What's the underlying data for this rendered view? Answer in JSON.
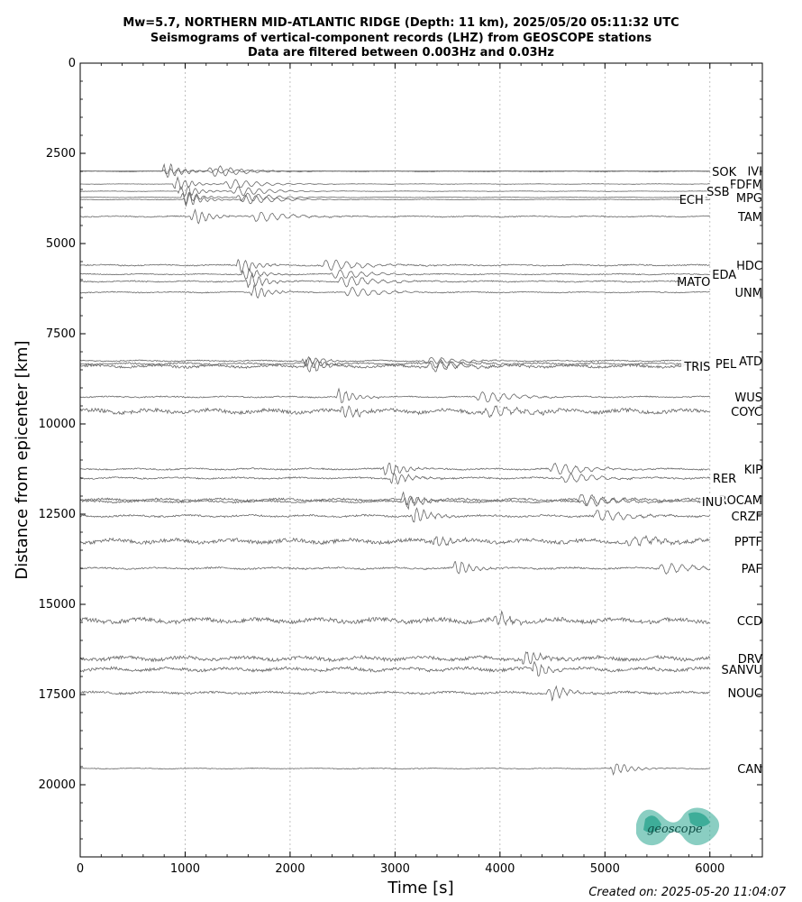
{
  "titles": {
    "line1": "Mw=5.7, NORTHERN MID-ATLANTIC RIDGE (Depth: 11 km), 2025/05/20 05:11:32 UTC",
    "line2": "Seismograms of vertical-component records (LHZ) from GEOSCOPE stations",
    "line3": "Data are filtered between 0.003Hz and 0.03Hz"
  },
  "footer": {
    "created": "Created on: 2025-05-20 11:04:07"
  },
  "logo": {
    "text": "geoscope",
    "color": "#2aa58f"
  },
  "chart_data": {
    "type": "line",
    "xlabel": "Time [s]",
    "ylabel": "Distance from epicenter [km]",
    "xlim": [
      0,
      6500
    ],
    "ylim": [
      22000,
      0
    ],
    "xticks": [
      0,
      1000,
      2000,
      3000,
      4000,
      5000,
      6000
    ],
    "yticks": [
      0,
      2500,
      5000,
      7500,
      10000,
      12500,
      15000,
      17500,
      20000
    ],
    "grid": "vertical-dotted",
    "trace_color": "#666666",
    "stations": [
      {
        "name": "SOK",
        "distance": 3000,
        "arrival": 780,
        "amp": 1.0,
        "noise": 0.02
      },
      {
        "name": "IVI",
        "distance": 2990,
        "arrival": 790,
        "amp": 0.4,
        "noise": 0.02
      },
      {
        "name": "FDFM",
        "distance": 3350,
        "arrival": 880,
        "amp": 0.8,
        "noise": 0.02
      },
      {
        "name": "SSB",
        "distance": 3550,
        "arrival": 930,
        "amp": 0.8,
        "noise": 0.02
      },
      {
        "name": "MPG",
        "distance": 3720,
        "arrival": 960,
        "amp": 0.8,
        "noise": 0.02
      },
      {
        "name": "ECH",
        "distance": 3780,
        "arrival": 980,
        "amp": 0.8,
        "noise": 0.02
      },
      {
        "name": "TAM",
        "distance": 4250,
        "arrival": 1050,
        "amp": 0.9,
        "noise": 0.05
      },
      {
        "name": "HDC",
        "distance": 5600,
        "arrival": 1480,
        "amp": 1.0,
        "noise": 0.05
      },
      {
        "name": "EDA",
        "distance": 5850,
        "arrival": 1540,
        "amp": 0.8,
        "noise": 0.05
      },
      {
        "name": "MATO",
        "distance": 6050,
        "arrival": 1580,
        "amp": 1.0,
        "noise": 0.05
      },
      {
        "name": "UNM",
        "distance": 6350,
        "arrival": 1620,
        "amp": 0.8,
        "noise": 0.05
      },
      {
        "name": "TRIS",
        "distance": 8400,
        "arrival": 2130,
        "amp": 0.9,
        "noise": 0.12
      },
      {
        "name": "ATD",
        "distance": 8250,
        "arrival": 2110,
        "amp": 0.6,
        "noise": 0.08
      },
      {
        "name": "PEL",
        "distance": 8330,
        "arrival": 2140,
        "amp": 0.7,
        "noise": 0.1
      },
      {
        "name": "WUS",
        "distance": 9250,
        "arrival": 2430,
        "amp": 1.0,
        "noise": 0.05
      },
      {
        "name": "COYC",
        "distance": 9650,
        "arrival": 2480,
        "amp": 0.9,
        "noise": 0.18
      },
      {
        "name": "KIP",
        "distance": 11250,
        "arrival": 2880,
        "amp": 1.0,
        "noise": 0.06
      },
      {
        "name": "RER",
        "distance": 11500,
        "arrival": 2950,
        "amp": 0.8,
        "noise": 0.08
      },
      {
        "name": "ROCAM",
        "distance": 12100,
        "arrival": 3050,
        "amp": 0.9,
        "noise": 0.1
      },
      {
        "name": "INU",
        "distance": 12150,
        "arrival": 3080,
        "amp": 0.8,
        "noise": 0.1
      },
      {
        "name": "CRZF",
        "distance": 12550,
        "arrival": 3150,
        "amp": 1.0,
        "noise": 0.08
      },
      {
        "name": "PPTF",
        "distance": 13250,
        "arrival": 3350,
        "amp": 0.8,
        "noise": 0.2
      },
      {
        "name": "PAF",
        "distance": 14000,
        "arrival": 3550,
        "amp": 0.9,
        "noise": 0.08
      },
      {
        "name": "CCD",
        "distance": 15450,
        "arrival": 3950,
        "amp": 0.9,
        "noise": 0.2
      },
      {
        "name": "DRV",
        "distance": 16500,
        "arrival": 4200,
        "amp": 1.0,
        "noise": 0.15
      },
      {
        "name": "SANVU",
        "distance": 16800,
        "arrival": 4300,
        "amp": 0.9,
        "noise": 0.15
      },
      {
        "name": "NOUC",
        "distance": 17450,
        "arrival": 4450,
        "amp": 0.9,
        "noise": 0.1
      },
      {
        "name": "CAN",
        "distance": 19550,
        "arrival": 5050,
        "amp": 0.8,
        "noise": 0.04
      }
    ]
  }
}
